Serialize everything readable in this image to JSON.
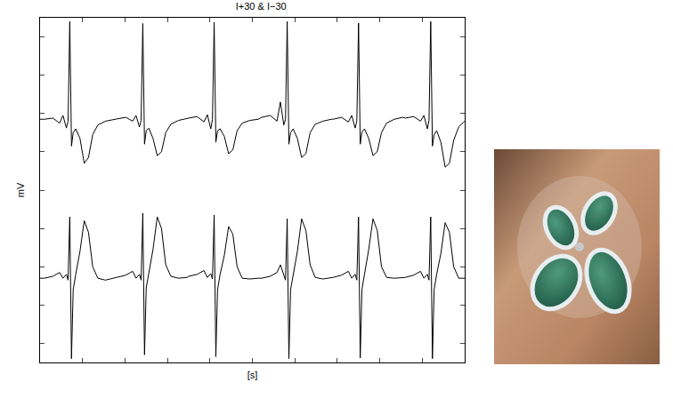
{
  "chart_data": {
    "type": "line",
    "title": "I+30 & I−30",
    "x_label": "[s]",
    "y_label": "mV",
    "xlim": [
      0,
      5
    ],
    "xticks": [
      0,
      0.5,
      1,
      1.5,
      2,
      2.5,
      3,
      3.5,
      4,
      4.5,
      5
    ],
    "ylim": [
      -4.5,
      4.5
    ],
    "yticks": [
      -4,
      -3,
      -2,
      -1,
      0,
      1,
      2,
      3,
      4
    ],
    "grid": false,
    "tick_labels": false,
    "x": [
      0,
      0.05,
      0.15,
      0.23,
      0.27,
      0.31,
      0.33,
      0.35,
      0.37,
      0.39,
      0.42,
      0.47,
      0.52,
      0.57,
      0.62,
      0.68,
      0.77,
      0.87,
      0.91,
      1.01,
      1.09,
      1.13,
      1.17,
      1.19,
      1.21,
      1.23,
      1.25,
      1.28,
      1.33,
      1.38,
      1.43,
      1.48,
      1.54,
      1.63,
      1.73,
      1.75,
      1.85,
      1.93,
      1.97,
      2.01,
      2.03,
      2.05,
      2.07,
      2.09,
      2.12,
      2.17,
      2.22,
      2.27,
      2.32,
      2.38,
      2.47,
      2.57,
      2.61,
      2.71,
      2.79,
      2.83,
      2.87,
      2.89,
      2.91,
      2.93,
      2.95,
      2.98,
      3.03,
      3.08,
      3.13,
      3.18,
      3.24,
      3.33,
      3.43,
      3.45,
      3.55,
      3.63,
      3.67,
      3.71,
      3.73,
      3.75,
      3.77,
      3.79,
      3.82,
      3.87,
      3.92,
      3.97,
      4.02,
      4.08,
      4.17,
      4.27,
      4.3,
      4.4,
      4.48,
      4.52,
      4.56,
      4.58,
      4.6,
      4.62,
      4.64,
      4.67,
      4.72,
      4.77,
      4.82,
      4.87,
      4.93,
      5.0
    ],
    "series": [
      {
        "color": "#000000",
        "values": [
          1.85,
          1.85,
          1.88,
          1.75,
          1.95,
          1.62,
          1.8,
          4.4,
          1.15,
          1.5,
          1.6,
          1.35,
          0.7,
          0.85,
          1.45,
          1.7,
          1.8,
          1.85,
          1.86,
          1.9,
          1.8,
          1.95,
          1.65,
          1.82,
          4.35,
          1.2,
          1.55,
          1.62,
          1.35,
          0.9,
          1.0,
          1.5,
          1.72,
          1.82,
          1.88,
          1.88,
          1.92,
          1.78,
          1.97,
          1.6,
          1.85,
          4.38,
          1.25,
          1.55,
          1.6,
          1.4,
          0.95,
          1.05,
          1.55,
          1.75,
          1.82,
          1.85,
          1.9,
          1.95,
          1.8,
          2.3,
          1.7,
          1.85,
          4.4,
          1.2,
          1.5,
          1.6,
          1.35,
          0.85,
          0.95,
          1.5,
          1.72,
          1.8,
          1.85,
          1.85,
          1.9,
          1.78,
          1.95,
          1.62,
          1.8,
          4.36,
          1.2,
          1.52,
          1.6,
          1.35,
          0.9,
          1.0,
          1.5,
          1.75,
          1.85,
          1.9,
          1.88,
          1.92,
          1.8,
          1.95,
          1.6,
          1.82,
          4.4,
          1.15,
          1.45,
          1.55,
          1.25,
          0.6,
          0.7,
          1.3,
          1.65,
          1.8
        ]
      },
      {
        "color": "#000000",
        "values": [
          -2.3,
          -2.3,
          -2.25,
          -2.15,
          -2.3,
          -2.2,
          -2.35,
          -0.7,
          -4.4,
          -2.6,
          -2.2,
          -1.6,
          -0.8,
          -1.1,
          -2.0,
          -2.3,
          -2.35,
          -2.3,
          -2.28,
          -2.22,
          -2.12,
          -2.3,
          -2.2,
          -2.35,
          -0.6,
          -4.3,
          -2.55,
          -2.15,
          -1.55,
          -0.7,
          -1.0,
          -1.95,
          -2.25,
          -2.3,
          -2.28,
          -2.25,
          -2.2,
          -2.1,
          -2.28,
          -2.18,
          -2.32,
          -0.65,
          -4.35,
          -2.6,
          -2.2,
          -1.7,
          -0.95,
          -1.15,
          -2.0,
          -2.3,
          -2.32,
          -2.3,
          -2.3,
          -2.25,
          -2.15,
          -1.95,
          -2.2,
          -2.35,
          -0.75,
          -4.4,
          -2.6,
          -2.2,
          -1.6,
          -0.75,
          -1.05,
          -1.95,
          -2.28,
          -2.32,
          -2.3,
          -2.28,
          -2.22,
          -2.12,
          -2.3,
          -2.2,
          -2.35,
          -0.7,
          -4.38,
          -2.6,
          -2.2,
          -1.55,
          -0.75,
          -1.05,
          -2.0,
          -2.28,
          -2.3,
          -2.28,
          -2.28,
          -2.22,
          -2.12,
          -2.3,
          -2.2,
          -2.35,
          -0.7,
          -4.4,
          -2.6,
          -2.2,
          -1.65,
          -0.85,
          -1.1,
          -2.0,
          -2.3,
          -2.3
        ]
      }
    ]
  }
}
